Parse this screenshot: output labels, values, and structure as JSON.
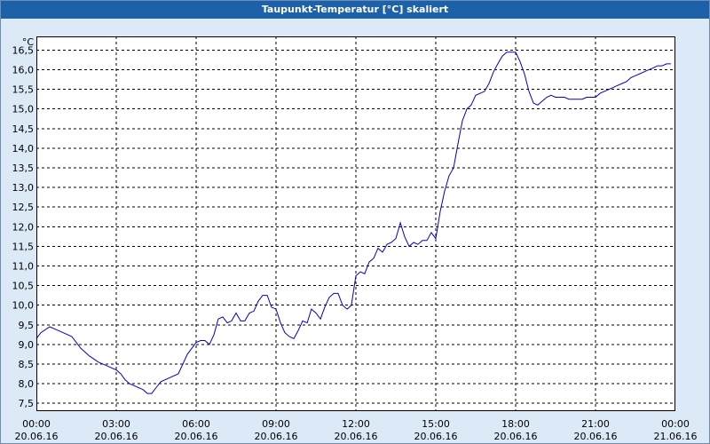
{
  "window": {
    "title": "Taupunkt-Temperatur [°C] skaliert"
  },
  "chart_data": {
    "type": "line",
    "title": "Taupunkt-Temperatur [°C] skaliert",
    "ylabel": "°C",
    "xlabel": "",
    "ylim": [
      7.3,
      16.85
    ],
    "xlim": [
      0,
      24
    ],
    "grid": true,
    "legend": "none",
    "colors": {
      "line": "#0000cc",
      "grid": "#000000",
      "plot_bg": "#ffffff",
      "frame_bg": "#dce9f7",
      "title_bg": "#1d62a8"
    },
    "y_ticks": [
      {
        "value": 7.5,
        "label": "7,5"
      },
      {
        "value": 8.0,
        "label": "8,0"
      },
      {
        "value": 8.5,
        "label": "8,5"
      },
      {
        "value": 9.0,
        "label": "9,0"
      },
      {
        "value": 9.5,
        "label": "9,5"
      },
      {
        "value": 10.0,
        "label": "10,0"
      },
      {
        "value": 10.5,
        "label": "10,5"
      },
      {
        "value": 11.0,
        "label": "11,0"
      },
      {
        "value": 11.5,
        "label": "11,5"
      },
      {
        "value": 12.0,
        "label": "12,0"
      },
      {
        "value": 12.5,
        "label": "12,5"
      },
      {
        "value": 13.0,
        "label": "13,0"
      },
      {
        "value": 13.5,
        "label": "13,5"
      },
      {
        "value": 14.0,
        "label": "14,0"
      },
      {
        "value": 14.5,
        "label": "14,5"
      },
      {
        "value": 15.0,
        "label": "15,0"
      },
      {
        "value": 15.5,
        "label": "15,5"
      },
      {
        "value": 16.0,
        "label": "16,0"
      },
      {
        "value": 16.5,
        "label": "16,5"
      }
    ],
    "x_ticks": [
      {
        "value": 0,
        "time": "00:00",
        "date": "20.06.16"
      },
      {
        "value": 3,
        "time": "03:00",
        "date": "20.06.16"
      },
      {
        "value": 6,
        "time": "06:00",
        "date": "20.06.16"
      },
      {
        "value": 9,
        "time": "09:00",
        "date": "20.06.16"
      },
      {
        "value": 12,
        "time": "12:00",
        "date": "20.06.16"
      },
      {
        "value": 15,
        "time": "15:00",
        "date": "20.06.16"
      },
      {
        "value": 18,
        "time": "18:00",
        "date": "20.06.16"
      },
      {
        "value": 21,
        "time": "21:00",
        "date": "20.06.16"
      },
      {
        "value": 24,
        "time": "00:00",
        "date": "21.06.16"
      }
    ],
    "series": [
      {
        "x": [
          0,
          0.17,
          0.5,
          0.67,
          1.0,
          1.33,
          1.5,
          1.67,
          2.0,
          2.33,
          2.67,
          3.0,
          3.17,
          3.33,
          3.5,
          3.67,
          4.0,
          4.17,
          4.33,
          4.5,
          4.67,
          5.0,
          5.33,
          5.5,
          5.67,
          6.0,
          6.17,
          6.33,
          6.5,
          6.67,
          6.83,
          7.0,
          7.17,
          7.33,
          7.5,
          7.67,
          7.83,
          8.0,
          8.17,
          8.33,
          8.5,
          8.67,
          8.83,
          9.0,
          9.17,
          9.33,
          9.5,
          9.67,
          9.83,
          10.0,
          10.17,
          10.33,
          10.5,
          10.67,
          10.83,
          11.0,
          11.17,
          11.33,
          11.5,
          11.67,
          11.83,
          12.0,
          12.17,
          12.33,
          12.5,
          12.67,
          12.83,
          13.0,
          13.17,
          13.33,
          13.5,
          13.67,
          13.83,
          14.0,
          14.17,
          14.33,
          14.5,
          14.67,
          14.83,
          15.0,
          15.17,
          15.33,
          15.5,
          15.67,
          15.83,
          16.0,
          16.17,
          16.33,
          16.5,
          16.67,
          16.83,
          17.0,
          17.17,
          17.33,
          17.5,
          17.67,
          17.83,
          18.0,
          18.17,
          18.33,
          18.5,
          18.67,
          18.83,
          19.0,
          19.17,
          19.33,
          19.5,
          19.67,
          19.83,
          20.0,
          20.33,
          20.5,
          20.67,
          20.83,
          21.0,
          21.17,
          21.33,
          21.5,
          21.67,
          21.83,
          22.0,
          22.17,
          22.33,
          22.5,
          22.67,
          22.83,
          23.0,
          23.17,
          23.33,
          23.5,
          23.67,
          23.83
        ],
        "y": [
          9.15,
          9.3,
          9.45,
          9.4,
          9.3,
          9.2,
          9.05,
          8.9,
          8.7,
          8.55,
          8.45,
          8.35,
          8.25,
          8.1,
          8.0,
          7.95,
          7.85,
          7.75,
          7.75,
          7.9,
          8.05,
          8.15,
          8.25,
          8.5,
          8.75,
          9.05,
          9.1,
          9.1,
          9.0,
          9.25,
          9.65,
          9.7,
          9.55,
          9.6,
          9.8,
          9.6,
          9.6,
          9.8,
          9.85,
          10.1,
          10.25,
          10.25,
          9.95,
          9.9,
          9.55,
          9.3,
          9.2,
          9.15,
          9.35,
          9.6,
          9.55,
          9.9,
          9.8,
          9.65,
          9.95,
          10.2,
          10.3,
          10.3,
          10.0,
          9.9,
          10.0,
          10.75,
          10.85,
          10.8,
          11.1,
          11.2,
          11.45,
          11.35,
          11.55,
          11.6,
          11.7,
          12.1,
          11.75,
          11.5,
          11.6,
          11.55,
          11.65,
          11.65,
          11.85,
          11.7,
          12.4,
          12.9,
          13.3,
          13.5,
          14.1,
          14.7,
          15.0,
          15.1,
          15.35,
          15.4,
          15.45,
          15.65,
          15.95,
          16.15,
          16.35,
          16.45,
          16.45,
          16.45,
          16.2,
          15.9,
          15.45,
          15.15,
          15.1,
          15.2,
          15.3,
          15.35,
          15.3,
          15.3,
          15.3,
          15.25,
          15.25,
          15.25,
          15.3,
          15.3,
          15.3,
          15.4,
          15.45,
          15.5,
          15.55,
          15.6,
          15.65,
          15.7,
          15.8,
          15.85,
          15.9,
          15.95,
          16.0,
          16.05,
          16.1,
          16.1,
          16.15,
          16.15
        ]
      }
    ]
  }
}
